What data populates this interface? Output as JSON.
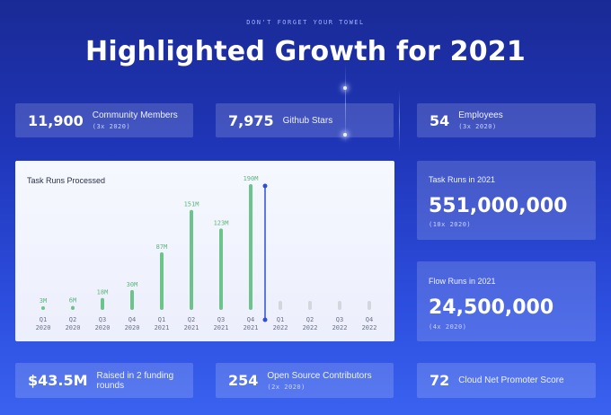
{
  "kicker": "DON'T FORGET YOUR TOWEL",
  "title": "Highlighted Growth for 2021",
  "stats": {
    "community": {
      "value": "11,900",
      "label": "Community Members",
      "sub": "(3x 2020)"
    },
    "github": {
      "value": "7,975",
      "label": "Github Stars"
    },
    "employees": {
      "value": "54",
      "label": "Employees",
      "sub": "(3x 2020)"
    },
    "funding": {
      "value": "$43.5M",
      "label": "Raised in 2 funding rounds"
    },
    "contributors": {
      "value": "254",
      "label": "Open Source Contributors",
      "sub": "(2x 2020)"
    },
    "nps": {
      "value": "72",
      "label": "Cloud Net Promoter Score"
    }
  },
  "task_runs": {
    "label": "Task Runs in 2021",
    "value": "551,000,000",
    "sub": "(10x 2020)"
  },
  "flow_runs": {
    "label": "Flow Runs in 2021",
    "value": "24,500,000",
    "sub": "(4x 2020)"
  },
  "colors": {
    "bar": "#6cc48a",
    "future_bar": "#d4d6de",
    "marker": "#2f4fd8"
  },
  "chart_data": {
    "type": "bar",
    "title": "Task Runs Processed",
    "categories": [
      "Q1 2020",
      "Q2 2020",
      "Q3 2020",
      "Q4 2020",
      "Q1 2021",
      "Q2 2021",
      "Q3 2021",
      "Q4 2021",
      "Q1 2022",
      "Q2 2022",
      "Q3 2022",
      "Q4 2022"
    ],
    "quarters": [
      "Q1",
      "Q2",
      "Q3",
      "Q4",
      "Q1",
      "Q2",
      "Q3",
      "Q4",
      "Q1",
      "Q2",
      "Q3",
      "Q4"
    ],
    "years": [
      "2020",
      "2020",
      "2020",
      "2020",
      "2021",
      "2021",
      "2021",
      "2021",
      "2022",
      "2022",
      "2022",
      "2022"
    ],
    "values": [
      3,
      6,
      18,
      30,
      87,
      151,
      123,
      190,
      null,
      null,
      null,
      null
    ],
    "value_labels": [
      "3M",
      "6M",
      "18M",
      "30M",
      "87M",
      "151M",
      "123M",
      "190M",
      "",
      "",
      "",
      ""
    ],
    "unit": "M",
    "ylim": [
      0,
      190
    ],
    "marker_after_category": "Q4 2021",
    "grid": false,
    "legend": "none"
  }
}
